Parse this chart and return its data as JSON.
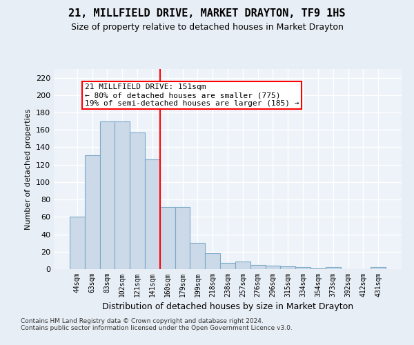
{
  "title": "21, MILLFIELD DRIVE, MARKET DRAYTON, TF9 1HS",
  "subtitle": "Size of property relative to detached houses in Market Drayton",
  "xlabel": "Distribution of detached houses by size in Market Drayton",
  "ylabel": "Number of detached properties",
  "categories": [
    "44sqm",
    "63sqm",
    "83sqm",
    "102sqm",
    "121sqm",
    "141sqm",
    "160sqm",
    "179sqm",
    "199sqm",
    "218sqm",
    "238sqm",
    "257sqm",
    "276sqm",
    "296sqm",
    "315sqm",
    "334sqm",
    "354sqm",
    "373sqm",
    "392sqm",
    "412sqm",
    "431sqm"
  ],
  "values": [
    60,
    131,
    170,
    170,
    157,
    126,
    71,
    71,
    30,
    18,
    7,
    9,
    5,
    4,
    3,
    2,
    1,
    2,
    0,
    0,
    2
  ],
  "bar_color": "#ccd9e8",
  "bar_edge_color": "#7aaac8",
  "vline_x": 5.5,
  "vline_color": "red",
  "annotation_text": "21 MILLFIELD DRIVE: 151sqm\n← 80% of detached houses are smaller (775)\n19% of semi-detached houses are larger (185) →",
  "annotation_box_color": "white",
  "annotation_box_edge": "red",
  "ylim": [
    0,
    230
  ],
  "yticks": [
    0,
    20,
    40,
    60,
    80,
    100,
    120,
    140,
    160,
    180,
    200,
    220
  ],
  "footer": "Contains HM Land Registry data © Crown copyright and database right 2024.\nContains public sector information licensed under the Open Government Licence v3.0.",
  "bg_color": "#e8eef5",
  "plot_bg_color": "#eef3fa",
  "title_fontsize": 11,
  "subtitle_fontsize": 9,
  "xlabel_fontsize": 9,
  "ylabel_fontsize": 8,
  "tick_fontsize": 8,
  "xtick_fontsize": 7,
  "footer_fontsize": 6.5,
  "annot_fontsize": 8
}
